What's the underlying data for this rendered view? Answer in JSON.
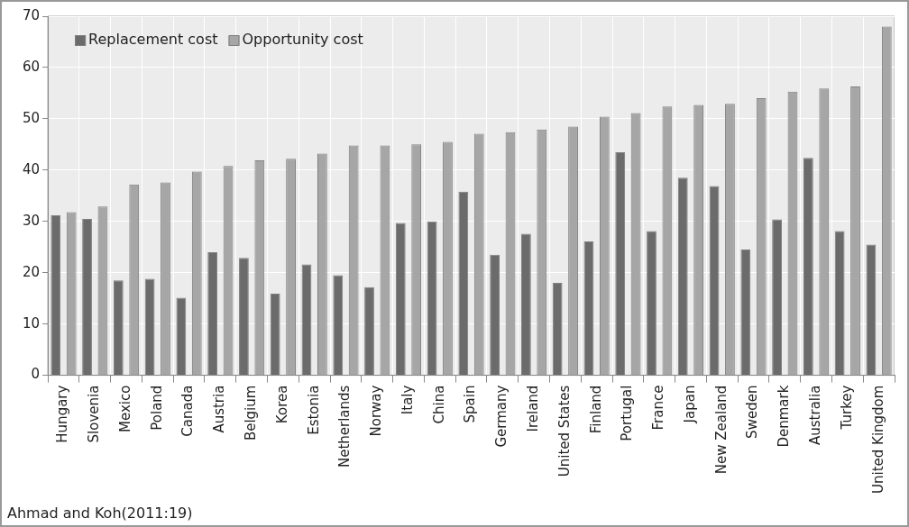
{
  "chart_data": {
    "type": "bar",
    "categories": [
      "Hungary",
      "Slovenia",
      "Mexico",
      "Poland",
      "Canada",
      "Austria",
      "Belgium",
      "Korea",
      "Estonia",
      "Netherlands",
      "Norway",
      "Italy",
      "China",
      "Spain",
      "Germany",
      "Ireland",
      "United States",
      "Finland",
      "Portugal",
      "France",
      "Japan",
      "New Zealand",
      "Sweden",
      "Denmark",
      "Australia",
      "Turkey",
      "United Kingdom"
    ],
    "series": [
      {
        "name": "Replacement cost",
        "color": "#6b6b6b",
        "values": [
          31.2,
          30.5,
          18.5,
          18.8,
          15.1,
          24,
          22.9,
          15.9,
          21.6,
          19.5,
          17.2,
          29.7,
          30,
          35.8,
          23.5,
          27.6,
          18,
          26.1,
          43.5,
          28.1,
          38.5,
          36.9,
          24.5,
          30.4,
          42.4,
          28.1,
          25.5
        ]
      },
      {
        "name": "Opportunity cost",
        "color": "#a6a6a6",
        "values": [
          31.8,
          32.9,
          37.2,
          37.6,
          39.7,
          40.8,
          41.9,
          42.2,
          43.2,
          44.8,
          44.8,
          45,
          45.5,
          47.1,
          47.4,
          47.9,
          48.5,
          50.4,
          51.1,
          52.4,
          52.7,
          52.9,
          54,
          55.3,
          55.9,
          56.3,
          68
        ]
      }
    ],
    "ylim": [
      0,
      70
    ],
    "yticks": [
      0,
      10,
      20,
      30,
      40,
      50,
      60,
      70
    ],
    "grid": true,
    "legend": "top left",
    "annotations": [
      "Ahmad and Koh(2011:19)"
    ]
  }
}
